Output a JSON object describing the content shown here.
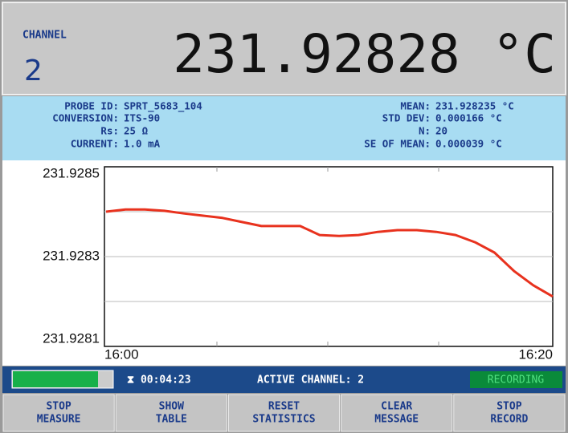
{
  "header": {
    "channel_label": "CHANNEL",
    "channel": "2",
    "reading": "231.92828 °C"
  },
  "info": {
    "left": [
      {
        "label": "PROBE ID:",
        "value": "SPRT_5683_104"
      },
      {
        "label": "CONVERSION:",
        "value": "ITS-90"
      },
      {
        "label": "Rs:",
        "value": "25 Ω"
      },
      {
        "label": "CURRENT:",
        "value": "1.0 mA"
      }
    ],
    "right": [
      {
        "label": "MEAN:",
        "value": "231.928235 °C"
      },
      {
        "label": "STD DEV:",
        "value": "0.000166 °C"
      },
      {
        "label": "N:",
        "value": "20"
      },
      {
        "label": "SE OF MEAN:",
        "value": "0.000039 °C"
      }
    ]
  },
  "chart_data": {
    "type": "line",
    "series": [
      {
        "color": "#e8321e",
        "values": [
          231.9284,
          231.928405,
          231.928405,
          231.928402,
          231.928396,
          231.928391,
          231.928386,
          231.928377,
          231.928368,
          231.928368,
          231.928368,
          231.928348,
          231.928346,
          231.928348,
          231.928355,
          231.928359,
          231.928359,
          231.928355,
          231.928348,
          231.928332,
          231.928309,
          231.928268,
          231.928236,
          231.928211
        ]
      }
    ],
    "ylim": [
      231.9281,
      231.9285
    ],
    "yticks": [
      231.9281,
      231.9283,
      231.9285
    ],
    "yminor_ticks": [
      231.9282,
      231.9284
    ],
    "xtick_labels": [
      "16:00",
      "16:20"
    ],
    "grid": true
  },
  "status": {
    "timer": "⧗ 00:04:23",
    "active_channel": "ACTIVE CHANNEL: 2",
    "recording": "RECORDING"
  },
  "buttons": [
    {
      "lines": [
        "STOP",
        "MEASURE"
      ],
      "enabled": true
    },
    {
      "lines": [
        "SHOW",
        "TABLE"
      ],
      "enabled": true
    },
    {
      "lines": [
        "RESET",
        "STATISTICS"
      ],
      "enabled": true
    },
    {
      "lines": [
        "CLEAR",
        "MESSAGE"
      ],
      "enabled": false
    },
    {
      "lines": [
        "STOP",
        "RECORD"
      ],
      "enabled": true
    }
  ]
}
